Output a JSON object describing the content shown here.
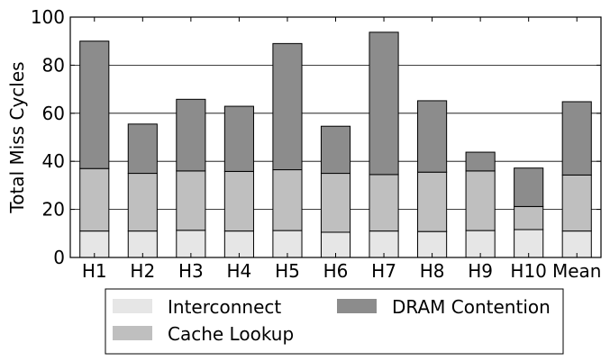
{
  "chart_data": {
    "type": "bar",
    "stacked": true,
    "categories": [
      "H1",
      "H2",
      "H3",
      "H4",
      "H5",
      "H6",
      "H7",
      "H8",
      "H9",
      "H10",
      "Mean"
    ],
    "series": [
      {
        "name": "Interconnect",
        "color": "#e6e6e6",
        "values": [
          11,
          11,
          11.3,
          11,
          11.2,
          10.5,
          11,
          10.8,
          11.2,
          11.6,
          11
        ]
      },
      {
        "name": "Cache Lookup",
        "color": "#bfbfbf",
        "values": [
          26,
          24,
          24.7,
          24.8,
          25.3,
          24.5,
          23.5,
          24.7,
          24.8,
          9.6,
          23.3
        ]
      },
      {
        "name": "DRAM Contention",
        "color": "#8c8c8c",
        "values": [
          53,
          20.5,
          29.8,
          27.1,
          52.5,
          19.6,
          59.2,
          29.7,
          7.8,
          16,
          30.5
        ]
      }
    ],
    "ylabel": "Total Miss Cycles",
    "xlabel": "",
    "ylim": [
      0,
      100
    ],
    "yticks": [
      0,
      20,
      40,
      60,
      80,
      100
    ],
    "grid": "horizontal",
    "legend_position": "bottom"
  }
}
